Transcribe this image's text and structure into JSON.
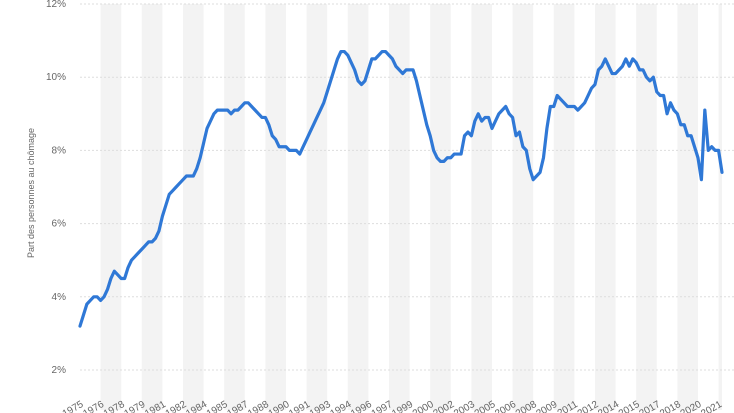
{
  "chart_data": {
    "type": "line",
    "ylabel": "Part des personnes au chômage",
    "ylim": [
      2,
      12
    ],
    "y_ticks": [
      "2%",
      "4%",
      "6%",
      "8%",
      "10%",
      "12%"
    ],
    "x_tick_labels": [
      "T1 1975",
      "T3 1976",
      "T1 1978",
      "T3 1979",
      "T1 1981",
      "T3 1982",
      "T1 1984",
      "T3 1985",
      "T1 1987",
      "T3 1988",
      "T1 1990",
      "T3 1991",
      "T1 1993",
      "T3 1994",
      "T1 1996",
      "T3 1997",
      "T1 1999",
      "T3 2000",
      "T1 2002",
      "T3 2003",
      "T1 2005",
      "T3 2006",
      "T1 2008",
      "T3 2009",
      "T1 2011",
      "T3 2012",
      "T1 2014",
      "T3 2015",
      "T1 2017",
      "T3 2018",
      "T1 2020",
      "T3 2021"
    ],
    "grid": true,
    "legend": "none",
    "colors": {
      "line": "#2f78d6",
      "band": "#f3f3f3",
      "grid": "#dddddd"
    },
    "series": [
      {
        "x": [
          "1975-Q1",
          "1975-Q2",
          "1975-Q3",
          "1975-Q4",
          "1976-Q1",
          "1976-Q2",
          "1976-Q3",
          "1976-Q4",
          "1977-Q1",
          "1977-Q2",
          "1977-Q3",
          "1977-Q4",
          "1978-Q1",
          "1978-Q2",
          "1978-Q3",
          "1978-Q4",
          "1979-Q1",
          "1979-Q2",
          "1979-Q3",
          "1979-Q4",
          "1980-Q1",
          "1980-Q2",
          "1980-Q3",
          "1980-Q4",
          "1981-Q1",
          "1981-Q2",
          "1981-Q3",
          "1981-Q4",
          "1982-Q1",
          "1982-Q2",
          "1982-Q3",
          "1982-Q4",
          "1983-Q1",
          "1983-Q2",
          "1983-Q3",
          "1983-Q4",
          "1984-Q1",
          "1984-Q2",
          "1984-Q3",
          "1984-Q4",
          "1985-Q1",
          "1985-Q2",
          "1985-Q3",
          "1985-Q4",
          "1986-Q1",
          "1986-Q2",
          "1986-Q3",
          "1986-Q4",
          "1987-Q1",
          "1987-Q2",
          "1987-Q3",
          "1987-Q4",
          "1988-Q1",
          "1988-Q2",
          "1988-Q3",
          "1988-Q4",
          "1989-Q1",
          "1989-Q2",
          "1989-Q3",
          "1989-Q4",
          "1990-Q1",
          "1990-Q2",
          "1990-Q3",
          "1990-Q4",
          "1991-Q1",
          "1991-Q2",
          "1991-Q3",
          "1991-Q4",
          "1992-Q1",
          "1992-Q2",
          "1992-Q3",
          "1992-Q4",
          "1993-Q1",
          "1993-Q2",
          "1993-Q3",
          "1993-Q4",
          "1994-Q1",
          "1994-Q2",
          "1994-Q3",
          "1994-Q4",
          "1995-Q1",
          "1995-Q2",
          "1995-Q3",
          "1995-Q4",
          "1996-Q1",
          "1996-Q2",
          "1996-Q3",
          "1996-Q4",
          "1997-Q1",
          "1997-Q2",
          "1997-Q3",
          "1997-Q4",
          "1998-Q1",
          "1998-Q2",
          "1998-Q3",
          "1998-Q4",
          "1999-Q1",
          "1999-Q2",
          "1999-Q3",
          "1999-Q4",
          "2000-Q1",
          "2000-Q2",
          "2000-Q3",
          "2000-Q4",
          "2001-Q1",
          "2001-Q2",
          "2001-Q3",
          "2001-Q4",
          "2002-Q1",
          "2002-Q2",
          "2002-Q3",
          "2002-Q4",
          "2003-Q1",
          "2003-Q2",
          "2003-Q3",
          "2003-Q4",
          "2004-Q1",
          "2004-Q2",
          "2004-Q3",
          "2004-Q4",
          "2005-Q1",
          "2005-Q2",
          "2005-Q3",
          "2005-Q4",
          "2006-Q1",
          "2006-Q2",
          "2006-Q3",
          "2006-Q4",
          "2007-Q1",
          "2007-Q2",
          "2007-Q3",
          "2007-Q4",
          "2008-Q1",
          "2008-Q2",
          "2008-Q3",
          "2008-Q4",
          "2009-Q1",
          "2009-Q2",
          "2009-Q3",
          "2009-Q4",
          "2010-Q1",
          "2010-Q2",
          "2010-Q3",
          "2010-Q4",
          "2011-Q1",
          "2011-Q2",
          "2011-Q3",
          "2011-Q4",
          "2012-Q1",
          "2012-Q2",
          "2012-Q3",
          "2012-Q4",
          "2013-Q1",
          "2013-Q2",
          "2013-Q3",
          "2013-Q4",
          "2014-Q1",
          "2014-Q2",
          "2014-Q3",
          "2014-Q4",
          "2015-Q1",
          "2015-Q2",
          "2015-Q3",
          "2015-Q4",
          "2016-Q1",
          "2016-Q2",
          "2016-Q3",
          "2016-Q4",
          "2017-Q1",
          "2017-Q2",
          "2017-Q3",
          "2017-Q4",
          "2018-Q1",
          "2018-Q2",
          "2018-Q3",
          "2018-Q4",
          "2019-Q1",
          "2019-Q2",
          "2019-Q3",
          "2019-Q4",
          "2020-Q1",
          "2020-Q2",
          "2020-Q3",
          "2020-Q4",
          "2021-Q1",
          "2021-Q2",
          "2021-Q3",
          "2021-Q4"
        ],
        "values": [
          3.2,
          3.5,
          3.8,
          3.9,
          4.0,
          4.0,
          3.9,
          4.0,
          4.2,
          4.5,
          4.7,
          4.6,
          4.5,
          4.5,
          4.8,
          5.0,
          5.1,
          5.2,
          5.3,
          5.4,
          5.5,
          5.5,
          5.6,
          5.8,
          6.2,
          6.5,
          6.8,
          6.9,
          7.0,
          7.1,
          7.2,
          7.3,
          7.3,
          7.3,
          7.5,
          7.8,
          8.2,
          8.6,
          8.8,
          9.0,
          9.1,
          9.1,
          9.1,
          9.1,
          9.0,
          9.1,
          9.1,
          9.2,
          9.3,
          9.3,
          9.2,
          9.1,
          9.0,
          8.9,
          8.9,
          8.7,
          8.4,
          8.3,
          8.1,
          8.1,
          8.1,
          8.0,
          8.0,
          8.0,
          7.9,
          8.1,
          8.3,
          8.5,
          8.7,
          8.9,
          9.1,
          9.3,
          9.6,
          9.9,
          10.2,
          10.5,
          10.7,
          10.7,
          10.6,
          10.4,
          10.2,
          9.9,
          9.8,
          9.9,
          10.2,
          10.5,
          10.5,
          10.6,
          10.7,
          10.7,
          10.6,
          10.5,
          10.3,
          10.2,
          10.1,
          10.2,
          10.2,
          10.2,
          9.9,
          9.5,
          9.1,
          8.7,
          8.4,
          8.0,
          7.8,
          7.7,
          7.7,
          7.8,
          7.8,
          7.9,
          7.9,
          7.9,
          8.4,
          8.5,
          8.4,
          8.8,
          9.0,
          8.8,
          8.9,
          8.9,
          8.6,
          8.8,
          9.0,
          9.1,
          9.2,
          9.0,
          8.9,
          8.4,
          8.5,
          8.1,
          8.0,
          7.5,
          7.2,
          7.3,
          7.4,
          7.8,
          8.6,
          9.2,
          9.2,
          9.5,
          9.4,
          9.3,
          9.2,
          9.2,
          9.2,
          9.1,
          9.2,
          9.3,
          9.5,
          9.7,
          9.8,
          10.2,
          10.3,
          10.5,
          10.3,
          10.1,
          10.1,
          10.2,
          10.3,
          10.5,
          10.3,
          10.5,
          10.4,
          10.2,
          10.2,
          10.0,
          9.9,
          10.0,
          9.6,
          9.5,
          9.5,
          9.0,
          9.3,
          9.1,
          9.0,
          8.7,
          8.7,
          8.4,
          8.4,
          8.1,
          7.8,
          7.2,
          9.1,
          8.0,
          8.1,
          8.0,
          8.0,
          7.4
        ]
      }
    ]
  }
}
